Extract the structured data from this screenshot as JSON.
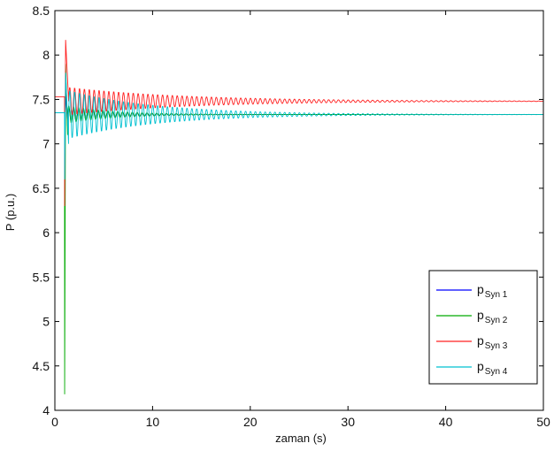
{
  "chart_data": {
    "type": "line",
    "xlabel": "zaman (s)",
    "ylabel": "P (p.u.)",
    "xlim": [
      0,
      50
    ],
    "ylim": [
      4,
      8.5
    ],
    "xticks": [
      "0",
      "10",
      "20",
      "30",
      "40",
      "50"
    ],
    "yticks": [
      "4",
      "4.5",
      "5",
      "5.5",
      "6",
      "6.5",
      "7",
      "7.5",
      "8",
      "8.5"
    ],
    "grid": false,
    "legend_position": "bottom-right",
    "series": [
      {
        "name_main": "p",
        "name_sub": "Syn 1",
        "color": "#0000ff",
        "initial": 7.35,
        "disturbance_time": 1.0,
        "transient": [
          [
            1.0,
            6.8
          ],
          [
            1.1,
            7.6
          ],
          [
            1.3,
            7.2
          ]
        ],
        "final": 7.33,
        "osc_amplitude": 0.08,
        "osc_period": 0.5,
        "decay_time": 5
      },
      {
        "name_main": "p",
        "name_sub": "Syn 2",
        "color": "#00aa00",
        "initial": 7.35,
        "disturbance_time": 1.0,
        "transient": [
          [
            1.0,
            4.18
          ],
          [
            1.1,
            7.9
          ],
          [
            1.3,
            7.1
          ]
        ],
        "final": 7.33,
        "osc_amplitude": 0.1,
        "osc_period": 0.5,
        "decay_time": 5
      },
      {
        "name_main": "p",
        "name_sub": "Syn 3",
        "color": "#ff2020",
        "initial": 7.53,
        "disturbance_time": 1.0,
        "transient": [
          [
            1.0,
            6.3
          ],
          [
            1.1,
            8.17
          ],
          [
            1.4,
            7.5
          ]
        ],
        "final": 7.48,
        "osc_amplitude": 0.16,
        "osc_period": 0.5,
        "decay_time": 12
      },
      {
        "name_main": "p",
        "name_sub": "Syn 4",
        "color": "#00c0d0",
        "initial": 7.35,
        "disturbance_time": 1.0,
        "transient": [
          [
            1.0,
            6.6
          ],
          [
            1.1,
            7.8
          ],
          [
            1.4,
            7.0
          ]
        ],
        "final": 7.33,
        "osc_amplitude": 0.28,
        "osc_period": 0.5,
        "decay_time": 9
      }
    ]
  }
}
